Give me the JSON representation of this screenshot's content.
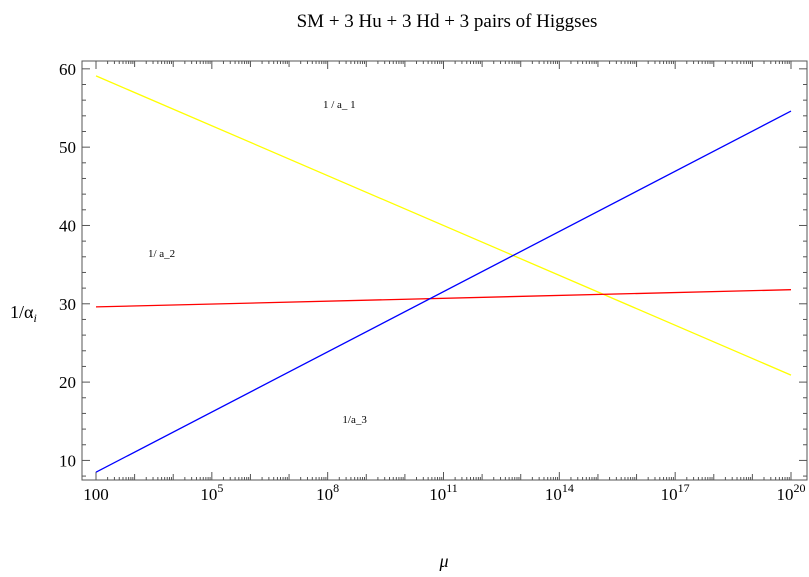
{
  "chart_data": {
    "type": "line",
    "title": "SM + 3 Hu + 3 Hd + 3 pairs of Higgses",
    "xlabel": "μ",
    "ylabel": "1/α",
    "ylabel_sub": "i",
    "x_scale": "log10",
    "xlim": [
      100,
      1e+20
    ],
    "ylim": [
      7.5,
      61
    ],
    "x_ticks": [
      {
        "value": 100,
        "mant": "100",
        "exp": ""
      },
      {
        "value": 100000.0,
        "mant": "10",
        "exp": "5"
      },
      {
        "value": 100000000.0,
        "mant": "10",
        "exp": "8"
      },
      {
        "value": 100000000000.0,
        "mant": "10",
        "exp": "11"
      },
      {
        "value": 100000000000000.0,
        "mant": "10",
        "exp": "14"
      },
      {
        "value": 1e+17,
        "mant": "10",
        "exp": "17"
      },
      {
        "value": 1e+20,
        "mant": "10",
        "exp": "20"
      }
    ],
    "y_ticks": [
      "10",
      "20",
      "30",
      "40",
      "50",
      "60"
    ],
    "series": [
      {
        "color": "#ffff00",
        "x": [
          100,
          1e+20
        ],
        "y": [
          59.1,
          20.9
        ]
      },
      {
        "color": "#ff0000",
        "x": [
          100,
          1e+20
        ],
        "y": [
          29.6,
          31.8
        ]
      },
      {
        "color": "#0000ff",
        "x": [
          100,
          1e+20
        ],
        "y": [
          8.5,
          54.6
        ]
      }
    ],
    "annotations": [
      {
        "text": "1 / a_ 1",
        "x": 200000000.0,
        "y": 55
      },
      {
        "text": "1/ a_2",
        "x": 5000.0,
        "y": 36
      },
      {
        "text": "1/a_3",
        "x": 500000000.0,
        "y": 14.8
      }
    ],
    "grid": false,
    "frame": true
  }
}
